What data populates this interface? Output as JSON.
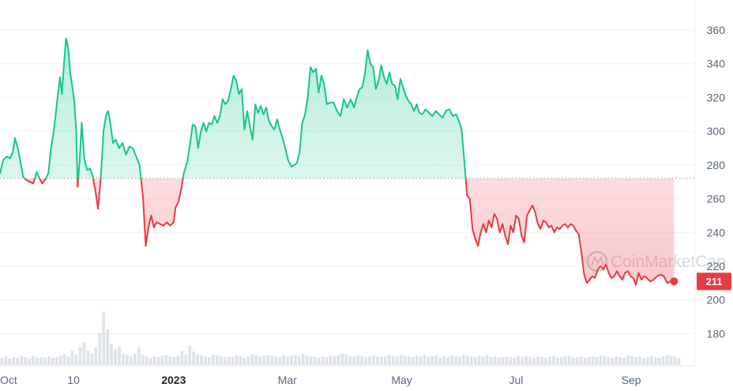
{
  "chart_data": {
    "type": "line",
    "baseline": 272,
    "current_price": 211,
    "current_price_label": "211",
    "watermark": "CoinMarketCap",
    "ylim": [
      160,
      370
    ],
    "y_ticks": [
      180,
      200,
      220,
      240,
      260,
      280,
      300,
      320,
      340,
      360
    ],
    "x_ticks": [
      {
        "label": "Oct",
        "t": 0.0,
        "bold": false
      },
      {
        "label": "10",
        "t": 0.108,
        "bold": false
      },
      {
        "label": "2023",
        "t": 0.255,
        "bold": true
      },
      {
        "label": "Mar",
        "t": 0.422,
        "bold": false
      },
      {
        "label": "May",
        "t": 0.59,
        "bold": false
      },
      {
        "label": "Jul",
        "t": 0.758,
        "bold": false
      },
      {
        "label": "Sep",
        "t": 0.927,
        "bold": false
      }
    ],
    "colors": {
      "up": "#16c784",
      "down": "#ea3943",
      "grid": "#eff2f5",
      "baseline": "#9aa1ad",
      "volume": "#dfe3ea"
    },
    "series": [
      {
        "values": [
          [
            0.0,
            275
          ],
          [
            0.005,
            283
          ],
          [
            0.01,
            285
          ],
          [
            0.015,
            284
          ],
          [
            0.019,
            288
          ],
          [
            0.022,
            296
          ],
          [
            0.026,
            290
          ],
          [
            0.03,
            282
          ],
          [
            0.034,
            273
          ],
          [
            0.039,
            271
          ],
          [
            0.044,
            270
          ],
          [
            0.049,
            269
          ],
          [
            0.054,
            276
          ],
          [
            0.058,
            272
          ],
          [
            0.062,
            269
          ],
          [
            0.066,
            271
          ],
          [
            0.071,
            275
          ],
          [
            0.075,
            290
          ],
          [
            0.079,
            300
          ],
          [
            0.084,
            318
          ],
          [
            0.088,
            332
          ],
          [
            0.091,
            322
          ],
          [
            0.094,
            340
          ],
          [
            0.097,
            355
          ],
          [
            0.1,
            350
          ],
          [
            0.103,
            335
          ],
          [
            0.106,
            327
          ],
          [
            0.109,
            318
          ],
          [
            0.112,
            300
          ],
          [
            0.114,
            267
          ],
          [
            0.117,
            283
          ],
          [
            0.12,
            305
          ],
          [
            0.124,
            283
          ],
          [
            0.128,
            277
          ],
          [
            0.132,
            278
          ],
          [
            0.136,
            274
          ],
          [
            0.14,
            265
          ],
          [
            0.144,
            254
          ],
          [
            0.148,
            272
          ],
          [
            0.152,
            300
          ],
          [
            0.156,
            310
          ],
          [
            0.159,
            312
          ],
          [
            0.162,
            305
          ],
          [
            0.166,
            293
          ],
          [
            0.17,
            295
          ],
          [
            0.175,
            290
          ],
          [
            0.18,
            293
          ],
          [
            0.185,
            286
          ],
          [
            0.19,
            291
          ],
          [
            0.195,
            290
          ],
          [
            0.2,
            285
          ],
          [
            0.205,
            280
          ],
          [
            0.21,
            261
          ],
          [
            0.214,
            232
          ],
          [
            0.218,
            243
          ],
          [
            0.222,
            250
          ],
          [
            0.226,
            243
          ],
          [
            0.23,
            246
          ],
          [
            0.235,
            245
          ],
          [
            0.24,
            244
          ],
          [
            0.245,
            246
          ],
          [
            0.25,
            244
          ],
          [
            0.255,
            246
          ],
          [
            0.258,
            255
          ],
          [
            0.262,
            258
          ],
          [
            0.266,
            265
          ],
          [
            0.27,
            275
          ],
          [
            0.275,
            282
          ],
          [
            0.279,
            292
          ],
          [
            0.283,
            304
          ],
          [
            0.287,
            303
          ],
          [
            0.291,
            290
          ],
          [
            0.295,
            300
          ],
          [
            0.299,
            305
          ],
          [
            0.303,
            300
          ],
          [
            0.307,
            305
          ],
          [
            0.311,
            304
          ],
          [
            0.315,
            309
          ],
          [
            0.319,
            305
          ],
          [
            0.323,
            309
          ],
          [
            0.327,
            319
          ],
          [
            0.331,
            316
          ],
          [
            0.335,
            318
          ],
          [
            0.339,
            325
          ],
          [
            0.343,
            333
          ],
          [
            0.347,
            330
          ],
          [
            0.351,
            322
          ],
          [
            0.355,
            325
          ],
          [
            0.359,
            301
          ],
          [
            0.363,
            312
          ],
          [
            0.367,
            303
          ],
          [
            0.371,
            295
          ],
          [
            0.375,
            316
          ],
          [
            0.379,
            311
          ],
          [
            0.383,
            315
          ],
          [
            0.387,
            310
          ],
          [
            0.391,
            314
          ],
          [
            0.395,
            306
          ],
          [
            0.399,
            303
          ],
          [
            0.403,
            301
          ],
          [
            0.407,
            307
          ],
          [
            0.411,
            301
          ],
          [
            0.415,
            296
          ],
          [
            0.419,
            290
          ],
          [
            0.423,
            283
          ],
          [
            0.428,
            279
          ],
          [
            0.432,
            280
          ],
          [
            0.436,
            281
          ],
          [
            0.44,
            288
          ],
          [
            0.444,
            305
          ],
          [
            0.448,
            310
          ],
          [
            0.452,
            320
          ],
          [
            0.456,
            338
          ],
          [
            0.46,
            335
          ],
          [
            0.464,
            337
          ],
          [
            0.468,
            323
          ],
          [
            0.472,
            333
          ],
          [
            0.476,
            328
          ],
          [
            0.48,
            316
          ],
          [
            0.485,
            317
          ],
          [
            0.49,
            317
          ],
          [
            0.495,
            312
          ],
          [
            0.5,
            309
          ],
          [
            0.505,
            319
          ],
          [
            0.51,
            314
          ],
          [
            0.515,
            319
          ],
          [
            0.52,
            314
          ],
          [
            0.524,
            320
          ],
          [
            0.528,
            325
          ],
          [
            0.532,
            326
          ],
          [
            0.536,
            334
          ],
          [
            0.54,
            348
          ],
          [
            0.544,
            340
          ],
          [
            0.548,
            338
          ],
          [
            0.552,
            325
          ],
          [
            0.556,
            330
          ],
          [
            0.56,
            339
          ],
          [
            0.564,
            332
          ],
          [
            0.568,
            328
          ],
          [
            0.572,
            335
          ],
          [
            0.576,
            328
          ],
          [
            0.58,
            327
          ],
          [
            0.584,
            319
          ],
          [
            0.588,
            331
          ],
          [
            0.592,
            326
          ],
          [
            0.596,
            321
          ],
          [
            0.6,
            318
          ],
          [
            0.604,
            316
          ],
          [
            0.608,
            312
          ],
          [
            0.612,
            316
          ],
          [
            0.616,
            311
          ],
          [
            0.62,
            310
          ],
          [
            0.625,
            313
          ],
          [
            0.63,
            311
          ],
          [
            0.635,
            309
          ],
          [
            0.64,
            312
          ],
          [
            0.645,
            310
          ],
          [
            0.65,
            308
          ],
          [
            0.655,
            312
          ],
          [
            0.66,
            313
          ],
          [
            0.665,
            309
          ],
          [
            0.67,
            310
          ],
          [
            0.674,
            306
          ],
          [
            0.678,
            301
          ],
          [
            0.682,
            282
          ],
          [
            0.686,
            262
          ],
          [
            0.69,
            260
          ],
          [
            0.694,
            242
          ],
          [
            0.698,
            236
          ],
          [
            0.702,
            232
          ],
          [
            0.706,
            240
          ],
          [
            0.71,
            245
          ],
          [
            0.714,
            240
          ],
          [
            0.718,
            247
          ],
          [
            0.722,
            243
          ],
          [
            0.726,
            251
          ],
          [
            0.73,
            248
          ],
          [
            0.734,
            240
          ],
          [
            0.738,
            245
          ],
          [
            0.742,
            238
          ],
          [
            0.746,
            233
          ],
          [
            0.75,
            244
          ],
          [
            0.754,
            240
          ],
          [
            0.758,
            250
          ],
          [
            0.762,
            248
          ],
          [
            0.766,
            238
          ],
          [
            0.77,
            234
          ],
          [
            0.774,
            250
          ],
          [
            0.778,
            253
          ],
          [
            0.782,
            256
          ],
          [
            0.786,
            252
          ],
          [
            0.79,
            245
          ],
          [
            0.794,
            242
          ],
          [
            0.798,
            247
          ],
          [
            0.802,
            246
          ],
          [
            0.806,
            243
          ],
          [
            0.81,
            244
          ],
          [
            0.814,
            240
          ],
          [
            0.818,
            243
          ],
          [
            0.822,
            242
          ],
          [
            0.826,
            244
          ],
          [
            0.83,
            245
          ],
          [
            0.834,
            243
          ],
          [
            0.838,
            245
          ],
          [
            0.842,
            244
          ],
          [
            0.846,
            241
          ],
          [
            0.85,
            239
          ],
          [
            0.854,
            228
          ],
          [
            0.858,
            215
          ],
          [
            0.862,
            210
          ],
          [
            0.866,
            212
          ],
          [
            0.87,
            214
          ],
          [
            0.874,
            213
          ],
          [
            0.878,
            218
          ],
          [
            0.882,
            220
          ],
          [
            0.886,
            218
          ],
          [
            0.89,
            221
          ],
          [
            0.894,
            216
          ],
          [
            0.898,
            213
          ],
          [
            0.902,
            214
          ],
          [
            0.906,
            217
          ],
          [
            0.91,
            214
          ],
          [
            0.914,
            212
          ],
          [
            0.918,
            216
          ],
          [
            0.922,
            217
          ],
          [
            0.926,
            214
          ],
          [
            0.93,
            213
          ],
          [
            0.934,
            209
          ],
          [
            0.938,
            216
          ],
          [
            0.942,
            212
          ],
          [
            0.946,
            214
          ],
          [
            0.95,
            213
          ],
          [
            0.955,
            211
          ],
          [
            0.96,
            212
          ],
          [
            0.965,
            214
          ],
          [
            0.97,
            215
          ],
          [
            0.975,
            214
          ],
          [
            0.98,
            210
          ],
          [
            0.985,
            211
          ],
          [
            0.99,
            211
          ]
        ]
      }
    ],
    "volume": [
      1,
      1.2,
      0.9,
      1.1,
      1,
      1.3,
      1.1,
      0.9,
      1.2,
      1,
      1.1,
      1,
      1.2,
      1,
      1.1,
      1.3,
      1.5,
      1.2,
      2,
      1.5,
      2.5,
      3.2,
      2,
      1.6,
      2.5,
      4.5,
      7.5,
      5,
      3,
      2.2,
      2.6,
      1.6,
      1.4,
      1.2,
      1.6,
      2.5,
      1.4,
      1.2,
      1,
      1.2,
      1.1,
      1.3,
      1.4,
      1.2,
      1.1,
      1.3,
      2,
      1.5,
      2.7,
      1.9,
      1.5,
      1.3,
      1.2,
      1.1,
      1.4,
      1.3,
      1.2,
      1.1,
      1.2,
      1.1,
      1.3,
      1.2,
      1,
      1.2,
      1.5,
      1.4,
      1.2,
      1.3,
      1.4,
      1.3,
      1.2,
      1.1,
      1.4,
      1.2,
      1.3,
      1.4,
      1.2,
      1.5,
      1.3,
      1.2,
      1.1,
      1,
      1.2,
      1.1,
      1.3,
      1.2,
      1.4,
      1.6,
      1.5,
      1.3,
      1.2,
      1.4,
      1.3,
      1.1,
      1.2,
      1.3,
      1.2,
      1.1,
      1.2,
      1.4,
      1.3,
      1.2,
      1.4,
      1.3,
      1.2,
      1.1,
      1.3,
      1.2,
      1.4,
      1.1,
      1.2,
      1.3,
      1,
      1.2,
      1.1,
      1.3,
      1.2,
      1.1,
      1.4,
      1.3,
      1.2,
      1.1,
      1.3,
      1.2,
      1.4,
      1.1,
      1.2,
      1,
      1.1,
      1.2,
      1.1,
      1,
      1.2,
      1.1,
      1.3,
      1.1,
      1,
      1.2,
      1.1,
      1,
      1.1,
      1.2,
      1,
      1.1,
      1.3,
      1.2,
      1,
      1.1,
      1.2,
      1,
      1.1,
      1.2,
      1.1,
      1.3,
      1.2,
      1.1,
      1,
      1.2,
      1.1,
      1,
      1.3,
      1.2,
      1.1,
      1.2,
      1,
      1.1,
      1.3,
      1.1,
      1,
      1.2,
      1.4,
      1.3,
      1.2,
      1
    ]
  }
}
